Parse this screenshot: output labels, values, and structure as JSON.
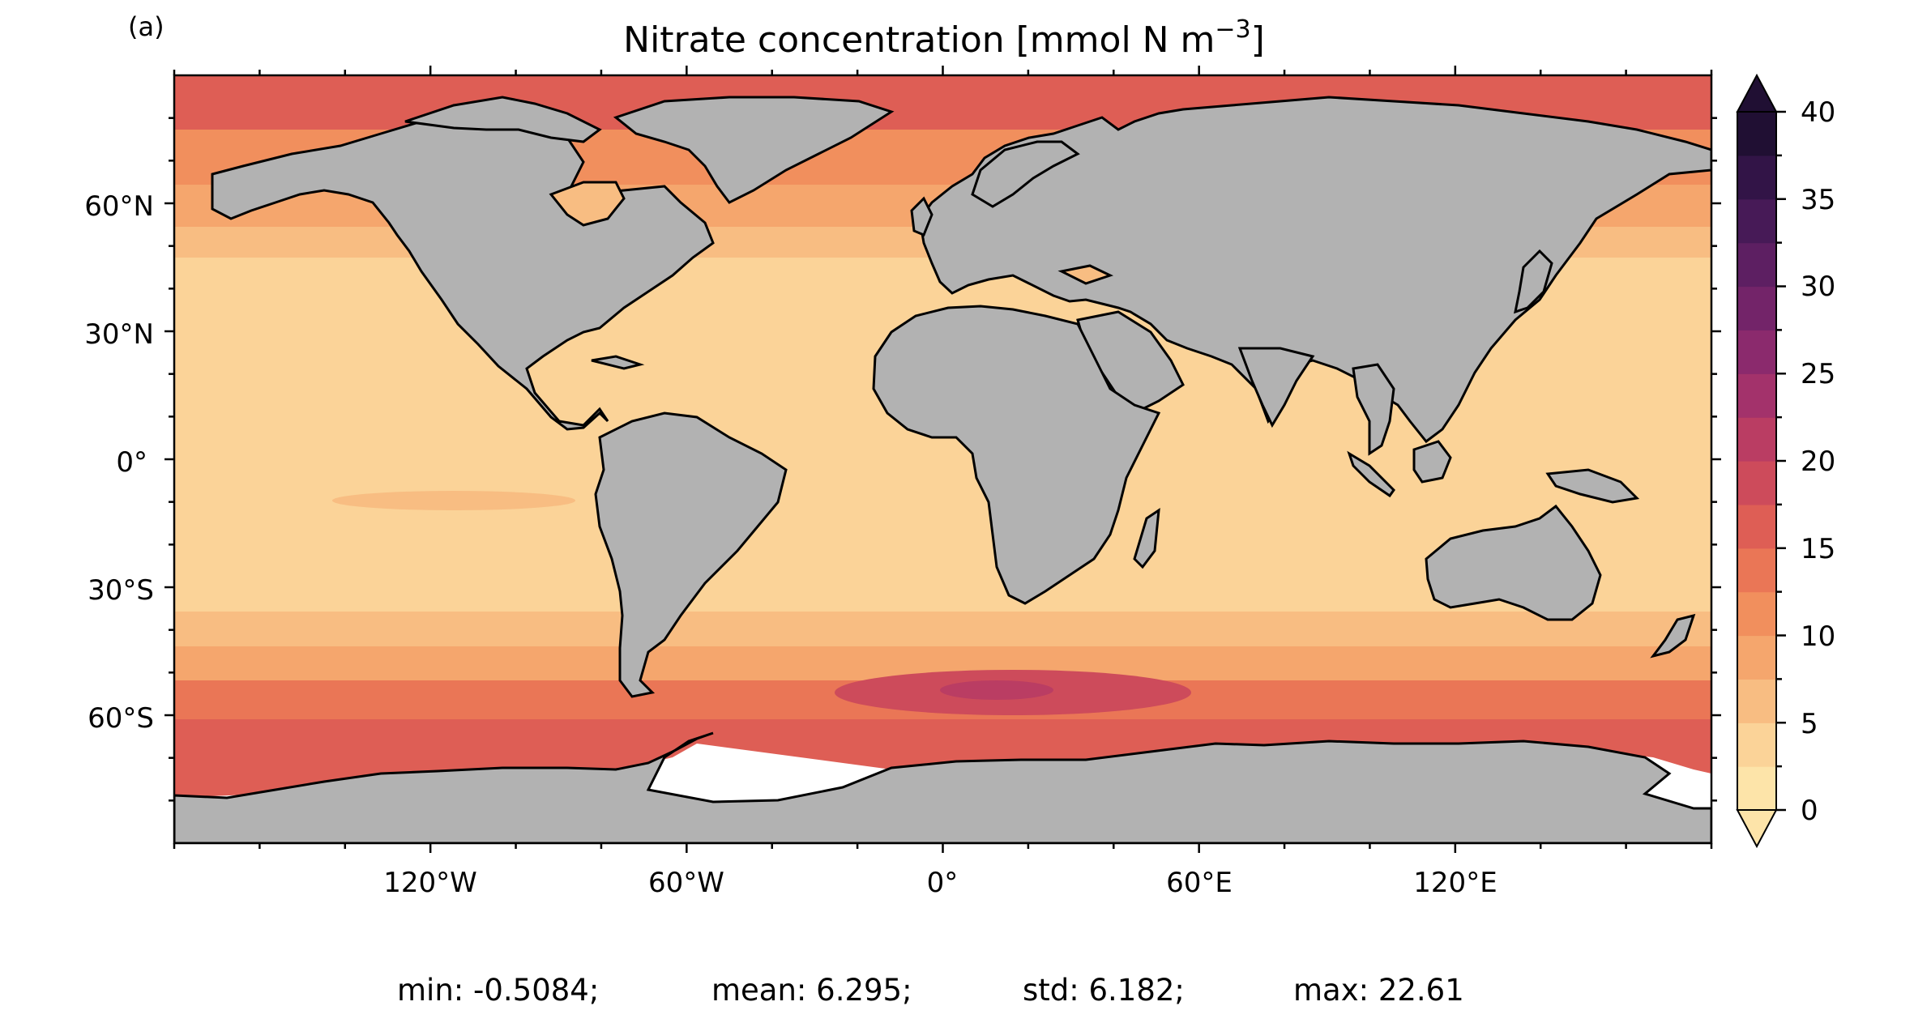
{
  "panel_label": "(a)",
  "title_main": "Nitrate concentration [mmol N m",
  "title_exp": "−3",
  "title_close": "]",
  "lat_ticks": [
    "60°N",
    "30°N",
    "0°",
    "30°S",
    "60°S"
  ],
  "lon_ticks": [
    "120°W",
    "60°W",
    "0°",
    "60°E",
    "120°E"
  ],
  "colorbar": {
    "ticks": [
      "0",
      "5",
      "10",
      "15",
      "20",
      "25",
      "30",
      "35",
      "40"
    ],
    "min": 0,
    "max": 40,
    "step": 2.5,
    "extend": "both",
    "colors": [
      "#fde4a9",
      "#fbd398",
      "#f8bd82",
      "#f5a66d",
      "#f18f5d",
      "#ea7656",
      "#de5e55",
      "#cd4b5b",
      "#ba3d63",
      "#a3326b",
      "#8b2a6d",
      "#732469",
      "#5d1f62",
      "#471a57",
      "#321447",
      "#200f33"
    ]
  },
  "stats": {
    "min": "min: -0.5084;",
    "mean": "mean: 6.295;",
    "std": "std: 6.182;",
    "max": "max: 22.61"
  },
  "map_colors": {
    "land": "#b2b2b2",
    "ice": "#ffffff",
    "coast": "#000000"
  }
}
